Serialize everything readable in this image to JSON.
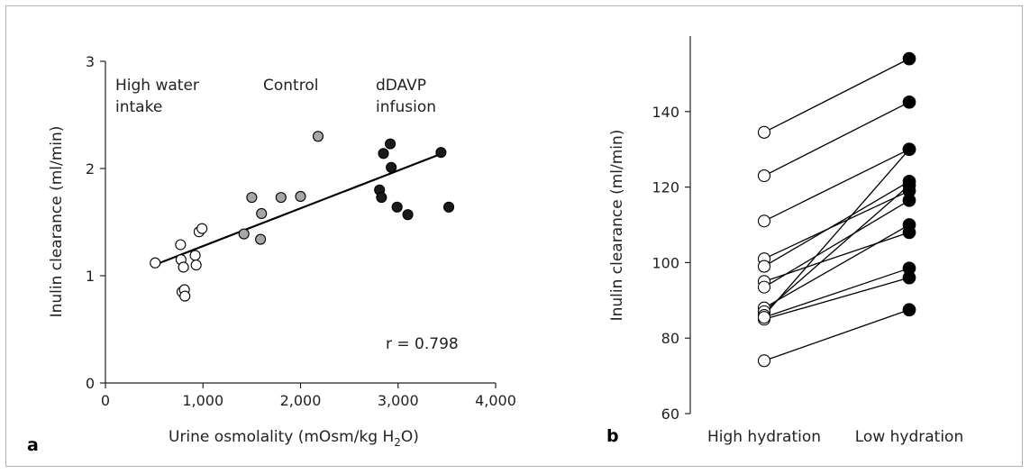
{
  "chart_data": [
    {
      "panel_label": "a",
      "type": "scatter",
      "xlabel": "Urine osmolality (mOsm/kg H",
      "xlabel_sub": "2",
      "xlabel_tail": "O)",
      "ylabel": "Inulin clearance (ml/min)",
      "xlim": [
        0,
        4000
      ],
      "ylim": [
        0,
        3
      ],
      "xticks": [
        0,
        1000,
        2000,
        3000,
        4000
      ],
      "xtick_labels": [
        "0",
        "1,000",
        "2,000",
        "3,000",
        "4,000"
      ],
      "yticks": [
        0,
        1,
        2,
        3
      ],
      "ytick_labels": [
        "0",
        "1",
        "2",
        "3"
      ],
      "groups": [
        {
          "label_lines": [
            "High water",
            "intake"
          ],
          "fill": "#ffffff",
          "points": [
            [
              510,
              1.12
            ],
            [
              770,
              1.29
            ],
            [
              775,
              1.15
            ],
            [
              785,
              0.85
            ],
            [
              800,
              1.08
            ],
            [
              810,
              0.87
            ],
            [
              815,
              0.81
            ],
            [
              920,
              1.19
            ],
            [
              930,
              1.1
            ],
            [
              960,
              1.41
            ],
            [
              990,
              1.44
            ]
          ]
        },
        {
          "label_lines": [
            "Control"
          ],
          "fill": "#a6a6a6",
          "points": [
            [
              1420,
              1.39
            ],
            [
              1500,
              1.73
            ],
            [
              1590,
              1.34
            ],
            [
              1600,
              1.58
            ],
            [
              1800,
              1.73
            ],
            [
              2000,
              1.74
            ],
            [
              2180,
              2.3
            ]
          ]
        },
        {
          "label_lines": [
            "dDAVP",
            "infusion"
          ],
          "fill": "#1a1a1a",
          "points": [
            [
              2810,
              1.8
            ],
            [
              2830,
              1.73
            ],
            [
              2850,
              2.14
            ],
            [
              2920,
              2.23
            ],
            [
              2930,
              2.01
            ],
            [
              2990,
              1.64
            ],
            [
              3100,
              1.57
            ],
            [
              3440,
              2.15
            ],
            [
              3520,
              1.64
            ]
          ]
        }
      ],
      "regression": [
        [
          500,
          1.1
        ],
        [
          3450,
          2.14
        ]
      ],
      "annotation": "r = 0.798"
    },
    {
      "panel_label": "b",
      "type": "line",
      "ylabel": "Inulin clearance (ml/min)",
      "ylim": [
        60,
        160
      ],
      "yticks": [
        60,
        80,
        100,
        120,
        140
      ],
      "categories": [
        "High hydration",
        "Low hydration"
      ],
      "series": [
        {
          "values": [
            134.5,
            154
          ]
        },
        {
          "values": [
            123,
            142.5
          ]
        },
        {
          "values": [
            111,
            130
          ]
        },
        {
          "values": [
            101,
            119
          ]
        },
        {
          "values": [
            99,
            121.5
          ]
        },
        {
          "values": [
            95,
            108
          ]
        },
        {
          "values": [
            93.5,
            116.5
          ]
        },
        {
          "values": [
            88,
            110
          ]
        },
        {
          "values": [
            87,
            120.5
          ]
        },
        {
          "values": [
            86,
            130
          ]
        },
        {
          "values": [
            85,
            96
          ]
        },
        {
          "values": [
            85.5,
            98.5
          ]
        },
        {
          "values": [
            74,
            87.5
          ]
        }
      ],
      "colors": {
        "high": "#ffffff",
        "low": "#000000"
      }
    }
  ]
}
